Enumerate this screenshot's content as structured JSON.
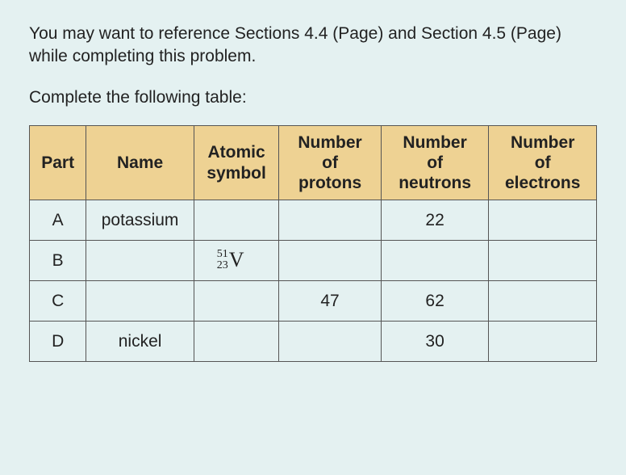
{
  "intro_text": "You may want to reference Sections 4.4 (Page) and Section 4.5 (Page) while completing this problem.",
  "prompt_text": "Complete the following table:",
  "table": {
    "type": "table",
    "header_bg": "#eed293",
    "cell_bg": "#e4f1f1",
    "border_color": "#555555",
    "columns": [
      {
        "key": "part",
        "label": "Part",
        "width_pct": 10
      },
      {
        "key": "name",
        "label": "Name",
        "width_pct": 19
      },
      {
        "key": "symbol",
        "label_line1": "Atomic",
        "label_line2": "symbol",
        "width_pct": 15
      },
      {
        "key": "protons",
        "label_line1": "Number",
        "label_line2": "of",
        "label_line3": "protons",
        "width_pct": 18
      },
      {
        "key": "neutrons",
        "label_line1": "Number",
        "label_line2": "of",
        "label_line3": "neutrons",
        "width_pct": 19
      },
      {
        "key": "electrons",
        "label_line1": "Number",
        "label_line2": "of",
        "label_line3": "electrons",
        "width_pct": 19
      }
    ],
    "rows": [
      {
        "part": "A",
        "name": "potassium",
        "symbol_mass": "",
        "symbol_atno": "",
        "symbol_elem": "",
        "protons": "",
        "neutrons": "22",
        "electrons": ""
      },
      {
        "part": "B",
        "name": "",
        "symbol_mass": "51",
        "symbol_atno": "23",
        "symbol_elem": "V",
        "protons": "",
        "neutrons": "",
        "electrons": ""
      },
      {
        "part": "C",
        "name": "",
        "symbol_mass": "",
        "symbol_atno": "",
        "symbol_elem": "",
        "protons": "47",
        "neutrons": "62",
        "electrons": ""
      },
      {
        "part": "D",
        "name": "nickel",
        "symbol_mass": "",
        "symbol_atno": "",
        "symbol_elem": "",
        "protons": "",
        "neutrons": "30",
        "electrons": ""
      }
    ]
  }
}
